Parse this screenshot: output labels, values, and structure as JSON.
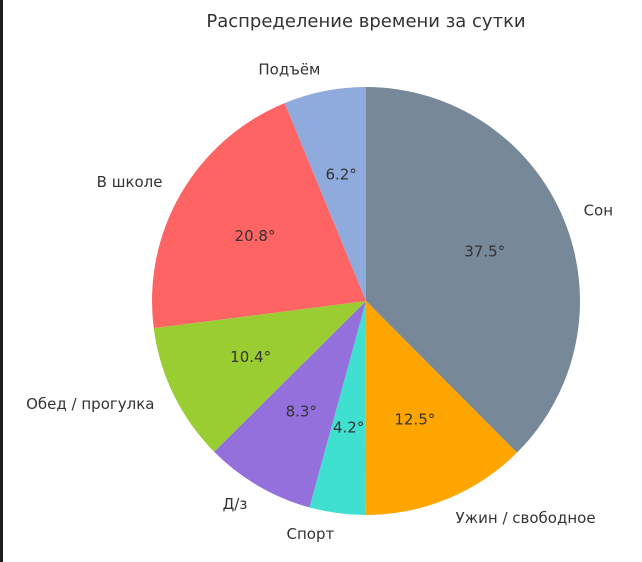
{
  "chart_data": {
    "type": "pie",
    "title": "Распределение времени за сутки",
    "categories": [
      "Сон",
      "Ужин / свободное",
      "Спорт",
      "Д/з",
      "Обед / прогулка",
      "В школе",
      "Подъём"
    ],
    "values": [
      37.5,
      12.5,
      4.2,
      8.3,
      10.4,
      20.8,
      6.2
    ],
    "value_labels": [
      "37.5°",
      "12.5°",
      "4.2°",
      "8.3°",
      "10.4°",
      "20.8°",
      "6.2°"
    ],
    "colors": [
      "#778899",
      "#FFA500",
      "#40E0D0",
      "#9370DB",
      "#9ACD32",
      "#FF6464",
      "#8FAADC"
    ],
    "start_angle": "top",
    "direction": "clockwise",
    "legend": "none"
  }
}
